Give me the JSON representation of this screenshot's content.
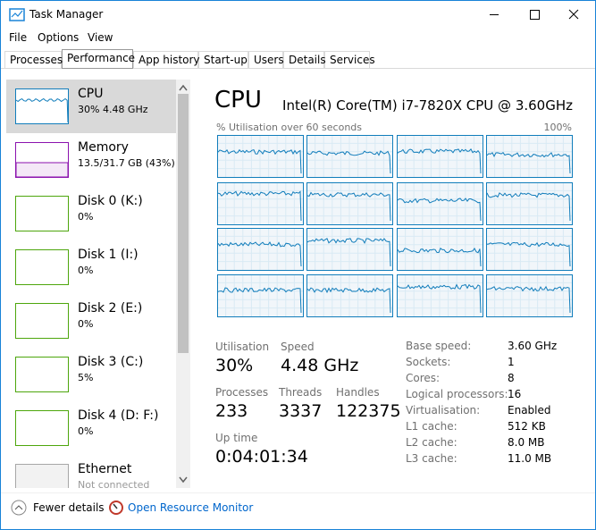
{
  "window": {
    "title": "Task Manager"
  },
  "menu": [
    "File",
    "Options",
    "View"
  ],
  "tabs": [
    "Processes",
    "Performance",
    "App history",
    "Start-up",
    "Users",
    "Details",
    "Services"
  ],
  "sidebar": [
    {
      "name": "CPU",
      "detail": "30% 4.48 GHz"
    },
    {
      "name": "Memory",
      "detail": "13.5/31.7 GB (43%)"
    },
    {
      "name": "Disk 0 (K:)",
      "detail": "0%"
    },
    {
      "name": "Disk 1 (I:)",
      "detail": "0%"
    },
    {
      "name": "Disk 2 (E:)",
      "detail": "0%"
    },
    {
      "name": "Disk 3 (C:)",
      "detail": "5%"
    },
    {
      "name": "Disk 4 (D: F:)",
      "detail": "0%"
    },
    {
      "name": "Ethernet",
      "detail": "Not connected"
    }
  ],
  "main": {
    "title": "CPU",
    "model": "Intel(R) Core(TM) i7-7820X CPU @ 3.60GHz",
    "graph_label": "% Utilisation over 60 seconds",
    "graph_max": "100%",
    "stats": [
      {
        "label": "Utilisation",
        "value": "30%"
      },
      {
        "label": "Speed",
        "value": "4.48 GHz"
      },
      {
        "label": "Processes",
        "value": "233"
      },
      {
        "label": "Threads",
        "value": "3337"
      },
      {
        "label": "Handles",
        "value": "122375"
      },
      {
        "label": "Up time",
        "value": "0:04:01:34"
      }
    ],
    "specs": [
      {
        "label": "Base speed:",
        "value": "3.60 GHz"
      },
      {
        "label": "Sockets:",
        "value": "1"
      },
      {
        "label": "Cores:",
        "value": "8"
      },
      {
        "label": "Logical processors:",
        "value": "16"
      },
      {
        "label": "Virtualisation:",
        "value": "Enabled"
      },
      {
        "label": "L1 cache:",
        "value": "512 KB"
      },
      {
        "label": "L2 cache:",
        "value": "8.0 MB"
      },
      {
        "label": "L3 cache:",
        "value": "11.0 MB"
      }
    ]
  },
  "footer": {
    "fewer": "Fewer details",
    "link": "Open Resource Monitor"
  }
}
